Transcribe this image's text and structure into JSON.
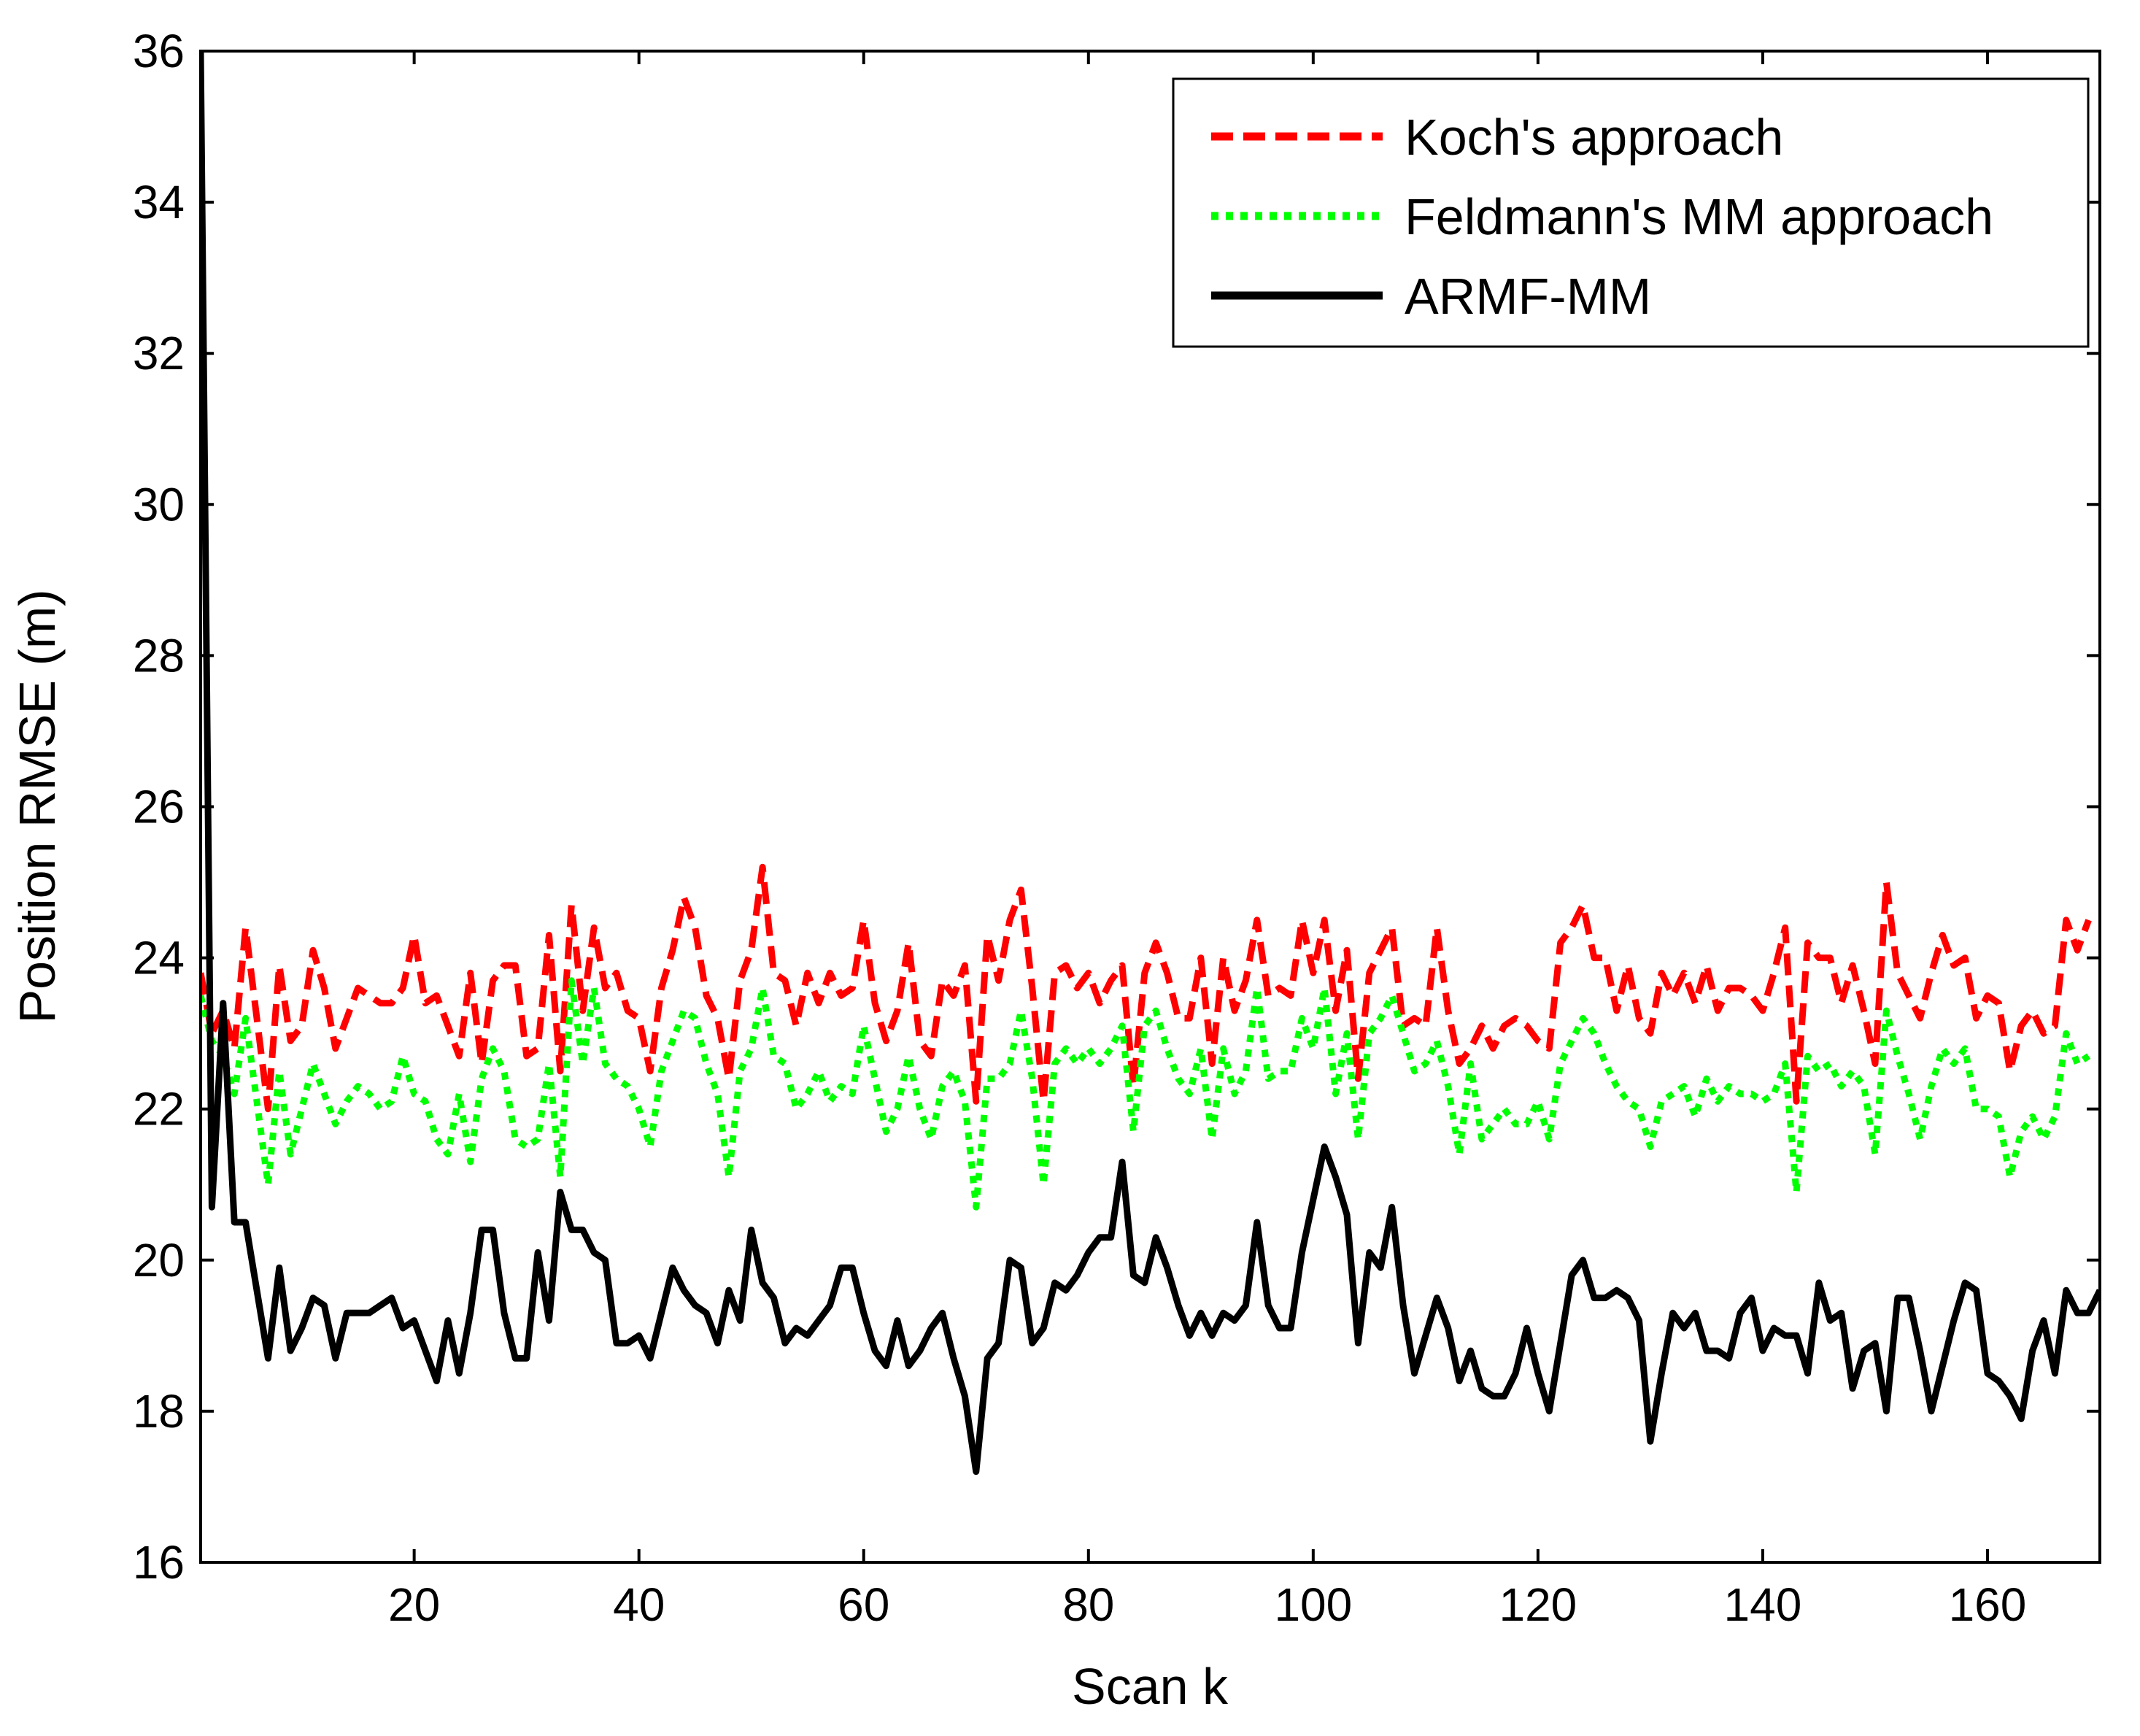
{
  "chart_data": {
    "type": "line",
    "title": "",
    "xlabel": "Scan k",
    "ylabel": "Position RMSE (m)",
    "xlim": [
      1,
      170
    ],
    "ylim": [
      16,
      36
    ],
    "xticks": [
      20,
      40,
      60,
      80,
      100,
      120,
      140,
      160
    ],
    "yticks": [
      16,
      18,
      20,
      22,
      24,
      26,
      28,
      30,
      32,
      34,
      36
    ],
    "legend_position": "top-right",
    "series": [
      {
        "name": "Koch's approach",
        "color": "#ff0000",
        "style": "dashed",
        "x_start": 1,
        "values": [
          23.8,
          23.0,
          23.3,
          22.8,
          24.4,
          23.2,
          22.0,
          23.9,
          22.9,
          23.1,
          24.1,
          23.6,
          22.8,
          23.2,
          23.6,
          23.5,
          23.4,
          23.4,
          23.6,
          24.3,
          23.4,
          23.5,
          23.1,
          22.7,
          23.8,
          22.6,
          23.7,
          23.9,
          23.9,
          22.7,
          22.8,
          24.3,
          22.5,
          24.7,
          23.3,
          24.4,
          23.6,
          23.8,
          23.3,
          23.2,
          22.5,
          23.6,
          24.1,
          24.8,
          24.4,
          23.5,
          23.2,
          22.4,
          23.7,
          24.1,
          25.2,
          23.8,
          23.7,
          23.1,
          23.8,
          23.4,
          23.8,
          23.5,
          23.6,
          24.5,
          23.4,
          22.9,
          23.3,
          24.2,
          22.9,
          22.7,
          23.7,
          23.5,
          23.9,
          22.1,
          24.3,
          23.7,
          24.5,
          24.9,
          23.6,
          22.1,
          23.8,
          23.9,
          23.6,
          23.8,
          23.4,
          23.7,
          23.9,
          22.3,
          23.8,
          24.2,
          23.8,
          23.2,
          23.2,
          24.0,
          22.6,
          24.0,
          23.3,
          23.7,
          24.5,
          23.5,
          23.6,
          23.5,
          24.5,
          23.8,
          24.5,
          23.3,
          24.1,
          22.4,
          23.8,
          24.1,
          24.4,
          23.1,
          23.2,
          23.1,
          24.4,
          23.3,
          22.6,
          22.8,
          23.1,
          22.8,
          23.1,
          23.2,
          23.1,
          22.9,
          22.8,
          24.2,
          24.4,
          24.7,
          24.0,
          24.0,
          23.3,
          23.9,
          23.2,
          23.0,
          23.8,
          23.5,
          23.8,
          23.4,
          23.9,
          23.3,
          23.6,
          23.6,
          23.5,
          23.3,
          23.8,
          24.4,
          22.1,
          24.2,
          24.0,
          24.0,
          23.4,
          23.9,
          23.3,
          22.6,
          25.0,
          23.8,
          23.5,
          23.2,
          23.8,
          24.3,
          23.9,
          24.0,
          23.2,
          23.5,
          23.4,
          22.5,
          23.1,
          23.3,
          23.0,
          23.1,
          24.5,
          24.1,
          24.5
        ]
      },
      {
        "name": "Feldmann's MM approach",
        "color": "#00ff00",
        "style": "dotted",
        "x_start": 1,
        "values": [
          23.5,
          22.9,
          22.7,
          22.2,
          23.2,
          22.1,
          21.0,
          22.5,
          21.4,
          22.0,
          22.6,
          22.2,
          21.8,
          22.1,
          22.3,
          22.2,
          22.0,
          22.1,
          22.7,
          22.2,
          22.1,
          21.6,
          21.4,
          22.2,
          21.3,
          22.4,
          22.8,
          22.5,
          21.6,
          21.5,
          21.6,
          22.6,
          21.1,
          23.7,
          22.6,
          23.6,
          22.6,
          22.4,
          22.3,
          22.0,
          21.5,
          22.5,
          22.9,
          23.3,
          23.2,
          22.6,
          22.2,
          21.1,
          22.5,
          22.8,
          23.6,
          22.7,
          22.6,
          22.0,
          22.2,
          22.5,
          22.1,
          22.3,
          22.2,
          23.1,
          22.4,
          21.7,
          22.0,
          22.7,
          22.0,
          21.6,
          22.3,
          22.5,
          22.1,
          20.7,
          22.4,
          22.4,
          22.6,
          23.3,
          22.4,
          21.0,
          22.6,
          22.8,
          22.6,
          22.8,
          22.6,
          22.8,
          23.1,
          21.7,
          23.1,
          23.3,
          22.8,
          22.4,
          22.2,
          22.8,
          21.6,
          22.8,
          22.2,
          22.5,
          23.6,
          22.4,
          22.5,
          22.5,
          23.2,
          22.8,
          23.6,
          22.2,
          23.0,
          21.6,
          23.0,
          23.2,
          23.5,
          23.0,
          22.5,
          22.6,
          22.9,
          22.3,
          21.4,
          22.6,
          21.6,
          21.8,
          22.0,
          21.8,
          21.8,
          22.1,
          21.6,
          22.6,
          22.9,
          23.2,
          23.0,
          22.6,
          22.3,
          22.1,
          22.0,
          21.5,
          22.1,
          22.2,
          22.3,
          21.9,
          22.4,
          22.1,
          22.3,
          22.2,
          22.2,
          22.1,
          22.2,
          22.6,
          20.9,
          22.7,
          22.5,
          22.6,
          22.3,
          22.5,
          22.3,
          21.4,
          23.3,
          22.7,
          22.2,
          21.6,
          22.3,
          22.8,
          22.6,
          22.8,
          22.0,
          22.0,
          21.9,
          21.1,
          21.7,
          21.9,
          21.6,
          21.9,
          23.0,
          22.6,
          22.7
        ]
      },
      {
        "name": "ARMF-MM",
        "color": "#000000",
        "style": "solid",
        "x_start": 1,
        "values": [
          36.0,
          20.7,
          23.4,
          20.5,
          20.5,
          19.6,
          18.7,
          19.9,
          18.8,
          19.1,
          19.5,
          19.4,
          18.7,
          19.3,
          19.3,
          19.3,
          19.4,
          19.5,
          19.1,
          19.2,
          18.8,
          18.4,
          19.2,
          18.5,
          19.3,
          20.4,
          20.4,
          19.3,
          18.7,
          18.7,
          20.1,
          19.2,
          20.9,
          20.4,
          20.4,
          20.1,
          20.0,
          18.9,
          18.9,
          19.0,
          18.7,
          19.3,
          19.9,
          19.6,
          19.4,
          19.3,
          18.9,
          19.6,
          19.2,
          20.4,
          19.7,
          19.5,
          18.9,
          19.1,
          19.0,
          19.2,
          19.4,
          19.9,
          19.9,
          19.3,
          18.8,
          18.6,
          19.2,
          18.6,
          18.8,
          19.1,
          19.3,
          18.7,
          18.2,
          17.2,
          18.7,
          18.9,
          20.0,
          19.9,
          18.9,
          19.1,
          19.7,
          19.6,
          19.8,
          20.1,
          20.3,
          20.3,
          21.3,
          19.8,
          19.7,
          20.3,
          19.9,
          19.4,
          19.0,
          19.3,
          19.0,
          19.3,
          19.2,
          19.4,
          20.5,
          19.4,
          19.1,
          19.1,
          20.1,
          20.8,
          21.5,
          21.1,
          20.6,
          18.9,
          20.1,
          19.9,
          20.7,
          19.4,
          18.5,
          19.0,
          19.5,
          19.1,
          18.4,
          18.8,
          18.3,
          18.2,
          18.2,
          18.5,
          19.1,
          18.5,
          18.0,
          18.9,
          19.8,
          20.0,
          19.5,
          19.5,
          19.6,
          19.5,
          19.2,
          17.6,
          18.5,
          19.3,
          19.1,
          19.3,
          18.8,
          18.8,
          18.7,
          19.3,
          19.5,
          18.8,
          19.1,
          19.0,
          19.0,
          18.5,
          19.7,
          19.2,
          19.3,
          18.3,
          18.8,
          18.9,
          18.0,
          19.5,
          19.5,
          18.8,
          18.0,
          18.6,
          19.2,
          19.7,
          19.6,
          18.5,
          18.4,
          18.2,
          17.9,
          18.8,
          19.2,
          18.5,
          19.6,
          19.3,
          19.3,
          19.6
        ]
      }
    ]
  }
}
